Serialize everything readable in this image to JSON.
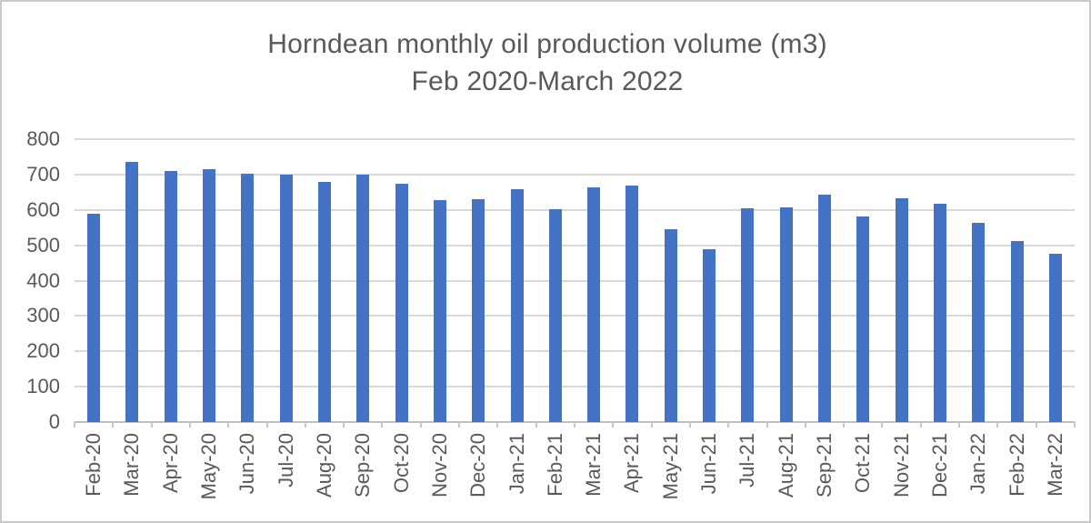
{
  "window": {
    "background_color": "#ffffff",
    "border_color": "#c9c9c9"
  },
  "chart_data": {
    "type": "bar",
    "title": "Horndean monthly oil production volume (m3)",
    "subtitle": "Feb 2020-March 2022",
    "categories": [
      "Feb-20",
      "Mar-20",
      "Apr-20",
      "May-20",
      "Jun-20",
      "Jul-20",
      "Aug-20",
      "Sep-20",
      "Oct-20",
      "Nov-20",
      "Dec-20",
      "Jan-21",
      "Feb-21",
      "Mar-21",
      "Apr-21",
      "May-21",
      "Jun-21",
      "Jul-21",
      "Aug-21",
      "Sep-21",
      "Oct-21",
      "Nov-21",
      "Dec-21",
      "Jan-22",
      "Feb-22",
      "Mar-22"
    ],
    "values": [
      590,
      735,
      711,
      715,
      703,
      699,
      678,
      700,
      674,
      628,
      631,
      658,
      601,
      663,
      669,
      545,
      488,
      605,
      608,
      642,
      581,
      632,
      617,
      563,
      512,
      475
    ],
    "series_name": "Monthly oil production volume (m3)",
    "ylim": [
      0,
      800
    ],
    "yticks": [
      0,
      100,
      200,
      300,
      400,
      500,
      600,
      700,
      800
    ],
    "xlabel": "",
    "ylabel": "",
    "grid": true,
    "legend_position": "none",
    "bar_color": "#4472c4",
    "gridline_color": "#d9d9d9",
    "axis_color": "#bfbfbf",
    "text_color": "#595959"
  }
}
